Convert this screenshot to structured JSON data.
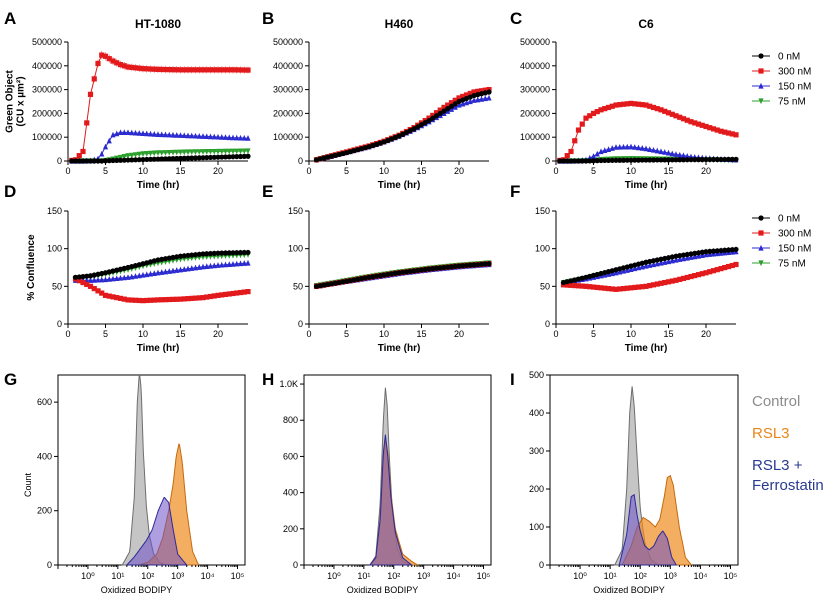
{
  "figure": {
    "legend_line": {
      "entries": [
        "0 nM",
        "300 nM",
        "150 nM",
        "75 nM"
      ],
      "colors": [
        "#000000",
        "#e31a1c",
        "#2a2ad0",
        "#2ca02c"
      ]
    },
    "legend_flow": {
      "entries": [
        {
          "lines": [
            "Control"
          ],
          "color": "#8c8c8c"
        },
        {
          "lines": [
            "RSL3"
          ],
          "color": "#e8861a"
        },
        {
          "lines": [
            "RSL3 +",
            "Ferrostatin"
          ],
          "color": "#2a3a8f"
        }
      ]
    }
  },
  "chart_data": [
    {
      "panel": "A",
      "title": "HT-1080",
      "type": "line",
      "xlabel": "Time (hr)",
      "ylabel": [
        "Green Object",
        "(CU x µm²)"
      ],
      "xlim": [
        0,
        24
      ],
      "ylim": [
        0,
        500000
      ],
      "xticks": [
        0,
        5,
        10,
        15,
        20
      ],
      "yticks": [
        0,
        100000,
        200000,
        300000,
        400000,
        500000
      ],
      "x": [
        0,
        1,
        2,
        3,
        4,
        4.5,
        5,
        6,
        7,
        8,
        10,
        12,
        15,
        18,
        20,
        22,
        24
      ],
      "series": [
        {
          "name": "0 nM",
          "values": [
            0,
            0,
            0,
            0,
            0,
            0,
            1000,
            2000,
            3000,
            4000,
            6000,
            8000,
            11000,
            14000,
            16000,
            18000,
            20000
          ]
        },
        {
          "name": "300 nM",
          "values": [
            0,
            5000,
            40000,
            280000,
            410000,
            445000,
            440000,
            420000,
            405000,
            395000,
            388000,
            385000,
            383000,
            383000,
            383000,
            383000,
            382000
          ]
        },
        {
          "name": "150 nM",
          "values": [
            0,
            0,
            0,
            1000,
            10000,
            30000,
            60000,
            110000,
            120000,
            120000,
            116000,
            112000,
            108000,
            104000,
            101000,
            98000,
            96000
          ]
        },
        {
          "name": "75 nM",
          "values": [
            0,
            0,
            0,
            0,
            0,
            0,
            2000,
            8000,
            15000,
            22000,
            30000,
            34000,
            37000,
            39000,
            40000,
            41000,
            42000
          ]
        }
      ]
    },
    {
      "panel": "B",
      "title": "H460",
      "type": "line",
      "xlabel": "Time (hr)",
      "ylabel": [],
      "xlim": [
        0,
        24
      ],
      "ylim": [
        0,
        500000
      ],
      "xticks": [
        0,
        5,
        10,
        15,
        20
      ],
      "yticks": [
        0,
        100000,
        200000,
        300000,
        400000,
        500000
      ],
      "x": [
        1,
        3,
        5,
        8,
        10,
        12,
        14,
        16,
        18,
        20,
        22,
        24
      ],
      "series": [
        {
          "name": "0 nM",
          "values": [
            5000,
            20000,
            35000,
            60000,
            80000,
            105000,
            135000,
            170000,
            210000,
            250000,
            275000,
            290000
          ]
        },
        {
          "name": "300 nM",
          "values": [
            5000,
            22000,
            38000,
            63000,
            83000,
            108000,
            140000,
            180000,
            225000,
            265000,
            290000,
            300000
          ]
        },
        {
          "name": "150 nM",
          "values": [
            5000,
            20000,
            36000,
            60000,
            80000,
            104000,
            132000,
            165000,
            200000,
            235000,
            255000,
            265000
          ]
        },
        {
          "name": "75 nM",
          "values": [
            5000,
            21000,
            37000,
            62000,
            82000,
            107000,
            140000,
            180000,
            225000,
            262000,
            283000,
            290000
          ]
        }
      ]
    },
    {
      "panel": "C",
      "title": "C6",
      "type": "line",
      "xlabel": "Time (hr)",
      "ylabel": [],
      "xlim": [
        0,
        24
      ],
      "ylim": [
        0,
        500000
      ],
      "xticks": [
        0,
        5,
        10,
        15,
        20
      ],
      "yticks": [
        0,
        100000,
        200000,
        300000,
        400000,
        500000
      ],
      "x": [
        0,
        1,
        2,
        3,
        4,
        5,
        6,
        8,
        10,
        12,
        14,
        16,
        18,
        20,
        22,
        24
      ],
      "series": [
        {
          "name": "0 nM",
          "values": [
            0,
            0,
            0,
            0,
            0,
            1000,
            2000,
            3000,
            3500,
            4000,
            4500,
            5000,
            5500,
            6000,
            6500,
            7000
          ]
        },
        {
          "name": "300 nM",
          "values": [
            0,
            5000,
            40000,
            130000,
            180000,
            200000,
            215000,
            235000,
            242000,
            235000,
            215000,
            190000,
            165000,
            145000,
            125000,
            110000
          ]
        },
        {
          "name": "150 nM",
          "values": [
            0,
            0,
            0,
            1000,
            5000,
            20000,
            40000,
            58000,
            60000,
            52000,
            40000,
            28000,
            18000,
            12000,
            8000,
            5000
          ]
        },
        {
          "name": "75 nM",
          "values": [
            0,
            0,
            0,
            0,
            1000,
            3000,
            6000,
            9000,
            10000,
            9000,
            8000,
            7000,
            6000,
            5000,
            4000,
            3000
          ]
        }
      ]
    },
    {
      "panel": "D",
      "title": "",
      "type": "line",
      "xlabel": "Time (hr)",
      "ylabel": [
        "% Confluence"
      ],
      "xlim": [
        0,
        24
      ],
      "ylim": [
        0,
        150
      ],
      "xticks": [
        0,
        5,
        10,
        15,
        20
      ],
      "yticks": [
        0,
        50,
        100,
        150
      ],
      "x": [
        1,
        3,
        5,
        8,
        10,
        12,
        15,
        18,
        20,
        24
      ],
      "series": [
        {
          "name": "0 nM",
          "values": [
            62,
            64,
            68,
            75,
            80,
            85,
            90,
            93,
            94,
            95
          ]
        },
        {
          "name": "300 nM",
          "values": [
            60,
            50,
            38,
            32,
            31,
            32,
            33,
            35,
            38,
            43
          ]
        },
        {
          "name": "150 nM",
          "values": [
            58,
            58,
            59,
            62,
            65,
            68,
            72,
            76,
            78,
            81
          ]
        },
        {
          "name": "75 nM",
          "values": [
            60,
            62,
            66,
            72,
            77,
            81,
            86,
            89,
            90,
            92
          ]
        }
      ]
    },
    {
      "panel": "E",
      "title": "",
      "type": "line",
      "xlabel": "Time (hr)",
      "ylabel": [],
      "xlim": [
        0,
        24
      ],
      "ylim": [
        0,
        150
      ],
      "xticks": [
        0,
        5,
        10,
        15,
        20
      ],
      "yticks": [
        0,
        50,
        100,
        150
      ],
      "x": [
        1,
        4,
        8,
        12,
        16,
        20,
        24
      ],
      "series": [
        {
          "name": "0 nM",
          "values": [
            50,
            55,
            62,
            68,
            73,
            77,
            80
          ]
        },
        {
          "name": "300 nM",
          "values": [
            50,
            55,
            62,
            68,
            73,
            77,
            80
          ]
        },
        {
          "name": "150 nM",
          "values": [
            50,
            55,
            61,
            67,
            72,
            76,
            79
          ]
        },
        {
          "name": "75 nM",
          "values": [
            51,
            56,
            63,
            69,
            74,
            78,
            81
          ]
        }
      ]
    },
    {
      "panel": "F",
      "title": "",
      "type": "line",
      "xlabel": "Time (hr)",
      "ylabel": [],
      "xlim": [
        0,
        24
      ],
      "ylim": [
        0,
        150
      ],
      "xticks": [
        0,
        5,
        10,
        15,
        20
      ],
      "yticks": [
        0,
        50,
        100,
        150
      ],
      "x": [
        1,
        4,
        8,
        12,
        16,
        20,
        24
      ],
      "series": [
        {
          "name": "0 nM",
          "values": [
            55,
            62,
            72,
            82,
            90,
            96,
            99
          ]
        },
        {
          "name": "300 nM",
          "values": [
            52,
            50,
            46,
            50,
            58,
            68,
            79
          ]
        },
        {
          "name": "150 nM",
          "values": [
            55,
            60,
            68,
            77,
            85,
            92,
            96
          ]
        },
        {
          "name": "75 nM",
          "values": [
            55,
            61,
            70,
            80,
            88,
            94,
            98
          ]
        }
      ]
    },
    {
      "panel": "G",
      "type": "histogram",
      "xscale": "log",
      "xlabel": "Oxidized BODIPY",
      "ylabel": [
        "Count"
      ],
      "xlim_exp": [
        -1,
        5
      ],
      "ylim": [
        0,
        700
      ],
      "yticks": [
        0,
        200,
        400,
        600
      ],
      "ytick_labels": [
        "0",
        "200",
        "400",
        "600"
      ],
      "xtick_labels": [
        "10⁰",
        "10¹",
        "10²",
        "10³",
        "10⁴",
        "10⁵"
      ],
      "xtick_exps": [
        0,
        1,
        2,
        3,
        4,
        5
      ],
      "series": [
        {
          "name": "Control",
          "log_x": [
            1.15,
            1.4,
            1.55,
            1.65,
            1.72,
            1.78,
            1.85,
            1.95,
            2.05,
            2.2,
            2.4,
            2.6
          ],
          "counts": [
            0,
            50,
            250,
            600,
            710,
            650,
            420,
            220,
            110,
            40,
            10,
            0
          ]
        },
        {
          "name": "RSL3",
          "log_x": [
            1.7,
            2.0,
            2.3,
            2.5,
            2.7,
            2.85,
            2.95,
            3.05,
            3.15,
            3.3,
            3.5,
            3.7
          ],
          "counts": [
            0,
            10,
            40,
            100,
            200,
            300,
            400,
            450,
            380,
            200,
            50,
            0
          ]
        },
        {
          "name": "RSL3 + Ferrostatin",
          "log_x": [
            1.3,
            1.55,
            1.75,
            1.95,
            2.15,
            2.35,
            2.55,
            2.7,
            2.85,
            3.0,
            3.3
          ],
          "counts": [
            0,
            30,
            60,
            90,
            130,
            200,
            250,
            230,
            130,
            40,
            0
          ]
        }
      ]
    },
    {
      "panel": "H",
      "type": "histogram",
      "xscale": "log",
      "xlabel": "Oxidized BODIPY",
      "ylabel": [],
      "xlim_exp": [
        -1,
        5
      ],
      "ylim": [
        0,
        1050
      ],
      "yticks": [
        0,
        200,
        400,
        600,
        800,
        1000
      ],
      "ytick_labels": [
        "0",
        "200",
        "400",
        "600",
        "800",
        "1.0K"
      ],
      "xtick_labels": [
        "10⁰",
        "10¹",
        "10²",
        "10³",
        "10⁴",
        "10⁵"
      ],
      "xtick_exps": [
        0,
        1,
        2,
        3,
        4,
        5
      ],
      "series": [
        {
          "name": "Control",
          "log_x": [
            1.2,
            1.4,
            1.55,
            1.65,
            1.72,
            1.78,
            1.85,
            1.95,
            2.1,
            2.3,
            2.6
          ],
          "counts": [
            0,
            50,
            350,
            800,
            980,
            880,
            600,
            300,
            100,
            20,
            0
          ]
        },
        {
          "name": "RSL3",
          "log_x": [
            1.2,
            1.4,
            1.55,
            1.65,
            1.72,
            1.8,
            1.9,
            2.05,
            2.3,
            2.6,
            2.8
          ],
          "counts": [
            0,
            40,
            250,
            600,
            700,
            620,
            400,
            200,
            60,
            20,
            0
          ]
        },
        {
          "name": "RSL3 + Ferrostatin",
          "log_x": [
            1.2,
            1.4,
            1.55,
            1.65,
            1.72,
            1.8,
            1.9,
            2.05,
            2.3,
            2.6
          ],
          "counts": [
            0,
            40,
            260,
            620,
            720,
            600,
            380,
            180,
            40,
            0
          ]
        }
      ]
    },
    {
      "panel": "I",
      "type": "histogram",
      "xscale": "log",
      "xlabel": "Oxidized BODIPY",
      "ylabel": [],
      "xlim_exp": [
        -1,
        5
      ],
      "ylim": [
        0,
        500
      ],
      "yticks": [
        0,
        100,
        200,
        300,
        400,
        500
      ],
      "ytick_labels": [
        "0",
        "100",
        "200",
        "300",
        "400",
        "500"
      ],
      "xtick_labels": [
        "10⁰",
        "10¹",
        "10²",
        "10³",
        "10⁴",
        "10⁵"
      ],
      "xtick_exps": [
        0,
        1,
        2,
        3,
        4,
        5
      ],
      "series": [
        {
          "name": "Control",
          "log_x": [
            1.15,
            1.4,
            1.55,
            1.65,
            1.73,
            1.8,
            1.9,
            2.0,
            2.15,
            2.35,
            2.6
          ],
          "counts": [
            0,
            40,
            200,
            400,
            470,
            420,
            280,
            150,
            60,
            15,
            0
          ]
        },
        {
          "name": "RSL3",
          "log_x": [
            1.4,
            1.7,
            1.9,
            2.1,
            2.3,
            2.5,
            2.65,
            2.8,
            2.9,
            3.0,
            3.1,
            3.3,
            3.5,
            3.7
          ],
          "counts": [
            0,
            50,
            100,
            125,
            115,
            100,
            120,
            180,
            230,
            235,
            210,
            100,
            20,
            0
          ]
        },
        {
          "name": "RSL3 + Ferrostatin",
          "log_x": [
            1.3,
            1.55,
            1.7,
            1.8,
            1.9,
            2.0,
            2.15,
            2.3,
            2.45,
            2.6,
            2.75,
            2.9,
            3.05,
            3.2
          ],
          "counts": [
            0,
            80,
            180,
            185,
            130,
            90,
            50,
            40,
            50,
            75,
            90,
            70,
            20,
            0
          ]
        }
      ]
    }
  ]
}
